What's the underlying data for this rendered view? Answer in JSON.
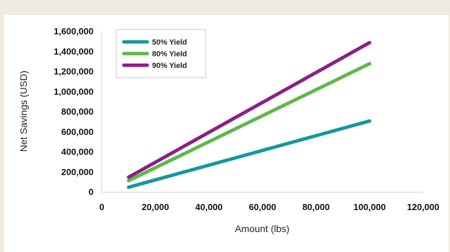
{
  "chart_data": {
    "type": "line",
    "title": "",
    "xlabel": "Amount (lbs)",
    "ylabel": "Net Savings (USD)",
    "xlim": [
      0,
      120000
    ],
    "ylim": [
      0,
      1600000
    ],
    "x_ticks": [
      0,
      20000,
      40000,
      60000,
      80000,
      100000,
      120000
    ],
    "x_tick_labels": [
      "0",
      "20,000",
      "40,000",
      "60,000",
      "80,000",
      "100,000",
      "120,000"
    ],
    "y_ticks": [
      0,
      200000,
      400000,
      600000,
      800000,
      1000000,
      1200000,
      1400000,
      1600000
    ],
    "y_tick_labels": [
      "0",
      "200,000",
      "400,000",
      "600,000",
      "800,000",
      "1,000,000",
      "1,200,000",
      "1,400,000",
      "1,600,000"
    ],
    "grid": false,
    "legend_position": "top-left",
    "series": [
      {
        "name": "50% Yield",
        "color": "#14979c",
        "x": [
          10000,
          100000
        ],
        "y": [
          50000,
          710000
        ]
      },
      {
        "name": "80% Yield",
        "color": "#5cb946",
        "x": [
          10000,
          100000
        ],
        "y": [
          115000,
          1280000
        ]
      },
      {
        "name": "90% Yield",
        "color": "#8c1f86",
        "x": [
          10000,
          100000
        ],
        "y": [
          150000,
          1490000
        ]
      }
    ]
  }
}
